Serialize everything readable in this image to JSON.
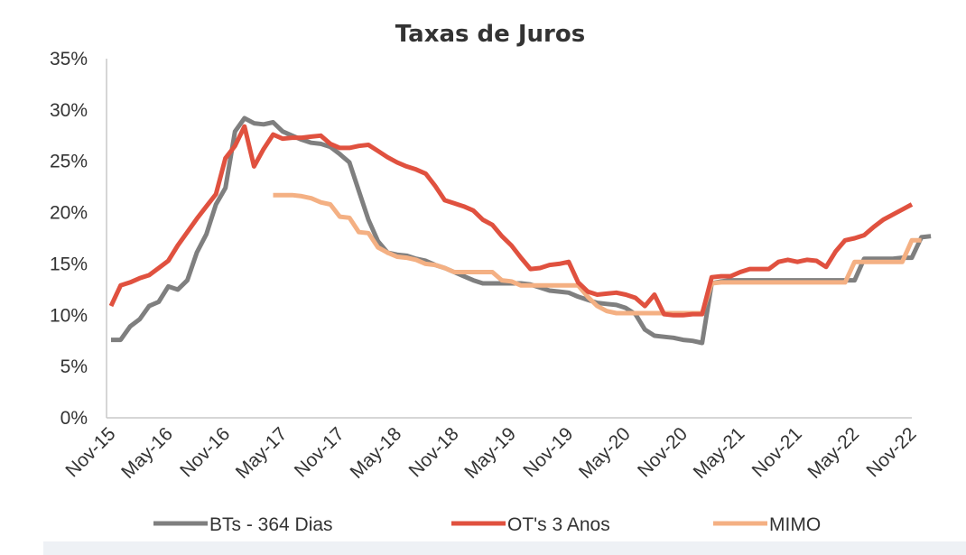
{
  "chart_data": {
    "type": "line",
    "title": "Taxas de Juros",
    "xlabel": "",
    "ylabel": "",
    "ylim": [
      0,
      35
    ],
    "yticks": [
      "0%",
      "5%",
      "10%",
      "15%",
      "20%",
      "25%",
      "30%",
      "35%"
    ],
    "x_ticks": [
      "Nov-15",
      "May-16",
      "Nov-16",
      "May-17",
      "Nov-17",
      "May-18",
      "Nov-18",
      "May-19",
      "Nov-19",
      "May-20",
      "Nov-20",
      "May-21",
      "Nov-21",
      "May-22",
      "Nov-22"
    ],
    "x_unit": "months since Nov-15",
    "grid": false,
    "legend_position": "bottom",
    "series": [
      {
        "name": "BTs - 364 Dias",
        "color": "#7f7f7f",
        "points": [
          [
            0,
            7.6
          ],
          [
            1,
            7.6
          ],
          [
            2,
            8.9
          ],
          [
            3,
            9.6
          ],
          [
            4,
            10.9
          ],
          [
            5,
            11.3
          ],
          [
            6,
            12.8
          ],
          [
            7,
            12.5
          ],
          [
            8,
            13.4
          ],
          [
            9,
            16.1
          ],
          [
            10,
            17.9
          ],
          [
            11,
            20.8
          ],
          [
            12,
            22.4
          ],
          [
            13,
            27.9
          ],
          [
            14,
            29.2
          ],
          [
            15,
            28.7
          ],
          [
            16,
            28.6
          ],
          [
            17,
            28.8
          ],
          [
            18,
            27.9
          ],
          [
            19,
            27.5
          ],
          [
            20,
            27.1
          ],
          [
            21,
            26.8
          ],
          [
            22,
            26.7
          ],
          [
            23,
            26.4
          ],
          [
            24,
            25.7
          ],
          [
            25,
            24.9
          ],
          [
            26,
            22.1
          ],
          [
            27,
            19.3
          ],
          [
            28,
            17.2
          ],
          [
            29,
            16.1
          ],
          [
            30,
            15.9
          ],
          [
            31,
            15.8
          ],
          [
            32,
            15.5
          ],
          [
            33,
            15.3
          ],
          [
            34,
            14.9
          ],
          [
            35,
            14.6
          ],
          [
            36,
            14.2
          ],
          [
            37,
            13.8
          ],
          [
            38,
            13.4
          ],
          [
            39,
            13.1
          ],
          [
            40,
            13.1
          ],
          [
            41,
            13.1
          ],
          [
            42,
            13.1
          ],
          [
            43,
            13.1
          ],
          [
            44,
            13.0
          ],
          [
            45,
            12.7
          ],
          [
            46,
            12.4
          ],
          [
            47,
            12.3
          ],
          [
            48,
            12.2
          ],
          [
            49,
            11.8
          ],
          [
            50,
            11.5
          ],
          [
            51,
            11.2
          ],
          [
            52,
            11.1
          ],
          [
            53,
            11.0
          ],
          [
            54,
            10.7
          ],
          [
            55,
            10.1
          ],
          [
            56,
            8.6
          ],
          [
            57,
            8.0
          ],
          [
            58,
            7.9
          ],
          [
            59,
            7.8
          ],
          [
            60,
            7.6
          ],
          [
            61,
            7.5
          ],
          [
            62,
            7.3
          ],
          [
            63,
            13.1
          ],
          [
            64,
            13.3
          ],
          [
            65,
            13.4
          ],
          [
            66,
            13.4
          ],
          [
            67,
            13.4
          ],
          [
            68,
            13.4
          ],
          [
            69,
            13.4
          ],
          [
            70,
            13.4
          ],
          [
            71,
            13.4
          ],
          [
            72,
            13.4
          ],
          [
            73,
            13.4
          ],
          [
            74,
            13.4
          ],
          [
            75,
            13.4
          ],
          [
            76,
            13.4
          ],
          [
            77,
            13.4
          ],
          [
            78,
            13.4
          ],
          [
            79,
            15.5
          ],
          [
            80,
            15.5
          ],
          [
            81,
            15.5
          ],
          [
            82,
            15.5
          ],
          [
            83,
            15.6
          ],
          [
            84,
            15.6
          ],
          [
            85,
            17.6
          ],
          [
            86,
            17.7
          ]
        ]
      },
      {
        "name": "OT's 3 Anos",
        "color": "#e0513f",
        "points": [
          [
            0,
            10.9
          ],
          [
            1,
            12.9
          ],
          [
            2,
            13.2
          ],
          [
            3,
            13.6
          ],
          [
            4,
            13.9
          ],
          [
            5,
            14.6
          ],
          [
            6,
            15.3
          ],
          [
            7,
            16.8
          ],
          [
            8,
            18.1
          ],
          [
            9,
            19.4
          ],
          [
            10,
            20.6
          ],
          [
            11,
            21.8
          ],
          [
            12,
            25.3
          ],
          [
            13,
            26.5
          ],
          [
            14,
            28.4
          ],
          [
            15,
            24.5
          ],
          [
            16,
            26.2
          ],
          [
            17,
            27.6
          ],
          [
            18,
            27.2
          ],
          [
            19,
            27.3
          ],
          [
            20,
            27.3
          ],
          [
            21,
            27.4
          ],
          [
            22,
            27.5
          ],
          [
            23,
            26.7
          ],
          [
            24,
            26.3
          ],
          [
            25,
            26.3
          ],
          [
            26,
            26.5
          ],
          [
            27,
            26.6
          ],
          [
            28,
            26.0
          ],
          [
            29,
            25.4
          ],
          [
            30,
            24.9
          ],
          [
            31,
            24.5
          ],
          [
            32,
            24.2
          ],
          [
            33,
            23.8
          ],
          [
            34,
            22.6
          ],
          [
            35,
            21.2
          ],
          [
            36,
            20.9
          ],
          [
            37,
            20.6
          ],
          [
            38,
            20.2
          ],
          [
            39,
            19.3
          ],
          [
            40,
            18.8
          ],
          [
            41,
            17.7
          ],
          [
            42,
            16.8
          ],
          [
            43,
            15.6
          ],
          [
            44,
            14.5
          ],
          [
            45,
            14.6
          ],
          [
            46,
            14.9
          ],
          [
            47,
            15.0
          ],
          [
            48,
            15.2
          ],
          [
            49,
            13.2
          ],
          [
            50,
            12.3
          ],
          [
            51,
            12.0
          ],
          [
            52,
            12.1
          ],
          [
            53,
            12.2
          ],
          [
            54,
            12.0
          ],
          [
            55,
            11.7
          ],
          [
            56,
            10.9
          ],
          [
            57,
            12.0
          ],
          [
            58,
            10.1
          ],
          [
            59,
            10.0
          ],
          [
            60,
            10.0
          ],
          [
            61,
            10.1
          ],
          [
            62,
            10.1
          ],
          [
            63,
            13.7
          ],
          [
            64,
            13.8
          ],
          [
            65,
            13.8
          ],
          [
            66,
            14.2
          ],
          [
            67,
            14.5
          ],
          [
            68,
            14.5
          ],
          [
            69,
            14.5
          ],
          [
            70,
            15.2
          ],
          [
            71,
            15.4
          ],
          [
            72,
            15.2
          ],
          [
            73,
            15.4
          ],
          [
            74,
            15.3
          ],
          [
            75,
            14.7
          ],
          [
            76,
            16.2
          ],
          [
            77,
            17.3
          ],
          [
            78,
            17.5
          ],
          [
            79,
            17.8
          ],
          [
            80,
            18.6
          ],
          [
            81,
            19.3
          ],
          [
            82,
            19.8
          ],
          [
            83,
            20.3
          ],
          [
            84,
            20.8
          ]
        ]
      },
      {
        "name": "MIMO",
        "color": "#f4b083",
        "points": [
          [
            17,
            21.7
          ],
          [
            18,
            21.7
          ],
          [
            19,
            21.7
          ],
          [
            20,
            21.6
          ],
          [
            21,
            21.4
          ],
          [
            22,
            21.0
          ],
          [
            23,
            20.8
          ],
          [
            24,
            19.6
          ],
          [
            25,
            19.5
          ],
          [
            26,
            18.1
          ],
          [
            27,
            18.0
          ],
          [
            28,
            16.6
          ],
          [
            29,
            16.1
          ],
          [
            30,
            15.7
          ],
          [
            31,
            15.6
          ],
          [
            32,
            15.4
          ],
          [
            33,
            15.0
          ],
          [
            34,
            14.9
          ],
          [
            35,
            14.6
          ],
          [
            36,
            14.2
          ],
          [
            37,
            14.2
          ],
          [
            38,
            14.2
          ],
          [
            39,
            14.2
          ],
          [
            40,
            14.2
          ],
          [
            41,
            13.4
          ],
          [
            42,
            13.3
          ],
          [
            43,
            12.9
          ],
          [
            44,
            12.9
          ],
          [
            45,
            12.9
          ],
          [
            46,
            12.9
          ],
          [
            47,
            12.9
          ],
          [
            48,
            12.9
          ],
          [
            49,
            12.9
          ],
          [
            50,
            11.8
          ],
          [
            51,
            10.9
          ],
          [
            52,
            10.4
          ],
          [
            53,
            10.2
          ],
          [
            54,
            10.2
          ],
          [
            55,
            10.2
          ],
          [
            56,
            10.2
          ],
          [
            57,
            10.2
          ],
          [
            58,
            10.2
          ],
          [
            59,
            10.2
          ],
          [
            60,
            10.2
          ],
          [
            61,
            10.2
          ],
          [
            62,
            10.2
          ],
          [
            63,
            13.1
          ],
          [
            64,
            13.2
          ],
          [
            65,
            13.2
          ],
          [
            66,
            13.2
          ],
          [
            67,
            13.2
          ],
          [
            68,
            13.2
          ],
          [
            69,
            13.2
          ],
          [
            70,
            13.2
          ],
          [
            71,
            13.2
          ],
          [
            72,
            13.2
          ],
          [
            73,
            13.2
          ],
          [
            74,
            13.2
          ],
          [
            75,
            13.2
          ],
          [
            76,
            13.2
          ],
          [
            77,
            13.2
          ],
          [
            78,
            15.2
          ],
          [
            79,
            15.2
          ],
          [
            80,
            15.2
          ],
          [
            81,
            15.2
          ],
          [
            82,
            15.2
          ],
          [
            83,
            15.2
          ],
          [
            84,
            17.3
          ],
          [
            85,
            17.3
          ]
        ]
      }
    ]
  }
}
